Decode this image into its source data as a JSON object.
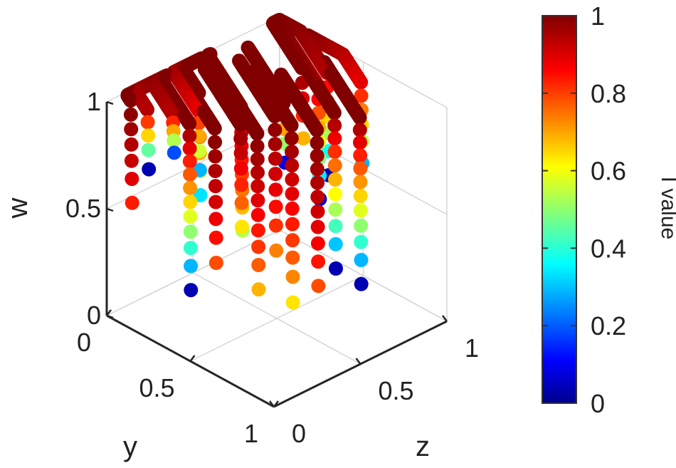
{
  "chart_data": {
    "type": "scatter",
    "projection": "3d",
    "axes": {
      "w": {
        "label": "w",
        "range": [
          0,
          1
        ],
        "ticks": [
          "0",
          "0.5",
          "1"
        ]
      },
      "y": {
        "label": "y",
        "range": [
          0,
          1
        ],
        "ticks": [
          "0",
          "0.5",
          "1"
        ]
      },
      "z": {
        "label": "z",
        "range": [
          0,
          1
        ],
        "ticks": [
          "0",
          "0.5",
          "1"
        ]
      }
    },
    "grid": true,
    "colormap": "jet",
    "colorbar": {
      "label": "I value",
      "range": [
        0,
        1
      ],
      "ticks": [
        "0",
        "0.2",
        "0.4",
        "0.6",
        "0.8",
        "1"
      ]
    },
    "colors": {
      "low": "#00008f",
      "high": "#800000"
    },
    "trajectories": [
      {
        "y0": 0.1,
        "z0": 0.05,
        "w0": 0.55,
        "w1": 1.0,
        "I0": 0.85,
        "I1": 1.0
      },
      {
        "y0": 0.2,
        "z0": 0.05,
        "w0": 0.75,
        "w1": 1.0,
        "I0": 0.05,
        "I1": 0.95
      },
      {
        "y0": 0.3,
        "z0": 0.1,
        "w0": 0.85,
        "w1": 1.0,
        "I0": 0.2,
        "I1": 0.95
      },
      {
        "y0": 0.4,
        "z0": 0.1,
        "w0": 0.25,
        "w1": 1.0,
        "I0": 0.05,
        "I1": 1.0
      },
      {
        "y0": 0.5,
        "z0": 0.15,
        "w0": 0.4,
        "w1": 1.0,
        "I0": 0.8,
        "I1": 1.0
      },
      {
        "y0": 0.55,
        "z0": 0.25,
        "w0": 0.55,
        "w1": 1.0,
        "I0": 0.65,
        "I1": 1.0
      },
      {
        "y0": 0.35,
        "z0": 0.2,
        "w0": 0.75,
        "w1": 1.0,
        "I0": 0.3,
        "I1": 0.9
      },
      {
        "y0": 0.65,
        "z0": 0.25,
        "w0": 0.3,
        "w1": 1.0,
        "I0": 0.7,
        "I1": 1.0
      },
      {
        "y0": 0.25,
        "z0": 0.3,
        "w0": 0.55,
        "w1": 1.0,
        "I0": 0.35,
        "I1": 1.0
      },
      {
        "y0": 0.45,
        "z0": 0.35,
        "w0": 0.45,
        "w1": 1.0,
        "I0": 0.55,
        "I1": 1.0
      },
      {
        "y0": 0.6,
        "z0": 0.4,
        "w0": 0.4,
        "w1": 1.0,
        "I0": 0.75,
        "I1": 1.0
      },
      {
        "y0": 0.7,
        "z0": 0.4,
        "w0": 0.2,
        "w1": 1.0,
        "I0": 0.65,
        "I1": 1.0
      },
      {
        "y0": 0.8,
        "z0": 0.45,
        "w0": 0.3,
        "w1": 1.0,
        "I0": 0.8,
        "I1": 1.0
      },
      {
        "y0": 0.55,
        "z0": 0.5,
        "w0": 0.75,
        "w1": 1.0,
        "I0": 0.1,
        "I1": 1.0
      },
      {
        "y0": 0.75,
        "z0": 0.6,
        "w0": 0.3,
        "w1": 1.0,
        "I0": 0.05,
        "I1": 1.0
      },
      {
        "y0": 0.85,
        "z0": 0.65,
        "w0": 0.25,
        "w1": 1.0,
        "I0": 0.05,
        "I1": 1.0
      },
      {
        "y0": 0.55,
        "z0": 0.7,
        "w0": 0.5,
        "w1": 1.0,
        "I0": 0.05,
        "I1": 0.95
      },
      {
        "y0": 0.5,
        "z0": 0.8,
        "w0": 0.55,
        "w1": 1.0,
        "I0": 0.05,
        "I1": 0.95
      },
      {
        "y0": 0.65,
        "z0": 0.85,
        "w0": 0.65,
        "w1": 1.0,
        "I0": 0.3,
        "I1": 0.9
      },
      {
        "y0": 0.4,
        "z0": 0.75,
        "w0": 0.7,
        "w1": 1.0,
        "I0": 0.7,
        "I1": 1.0
      }
    ]
  }
}
